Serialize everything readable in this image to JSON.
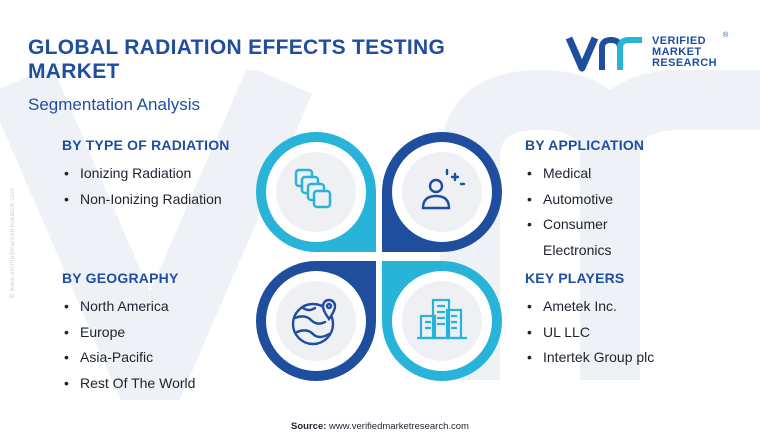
{
  "header": {
    "title": "GLOBAL RADIATION EFFECTS TESTING MARKET",
    "subtitle": "Segmentation Analysis"
  },
  "logo": {
    "line1": "VERIFIED",
    "line2": "MARKET",
    "line3": "RESEARCH",
    "registered": "®"
  },
  "side_url": "© www.verifiedmarketresearch.com",
  "segments": {
    "type_of_radiation": {
      "heading": "BY TYPE OF RADIATION",
      "items": [
        "Ionizing Radiation",
        "Non-Ionizing Radiation"
      ]
    },
    "application": {
      "heading": "BY APPLICATION",
      "items": [
        "Medical",
        "Automotive",
        "Consumer Electronics"
      ]
    },
    "geography": {
      "heading": "BY GEOGRAPHY",
      "items": [
        "North America",
        "Europe",
        "Asia-Pacific",
        "Rest Of The World"
      ]
    },
    "key_players": {
      "heading": "KEY PLAYERS",
      "items": [
        "Ametek Inc.",
        "UL LLC",
        "Intertek Group plc"
      ]
    }
  },
  "icons": {
    "top_left": "stacked-layers-icon",
    "top_right": "person-sparkle-icon",
    "bottom_left": "globe-location-icon",
    "bottom_right": "city-buildings-icon"
  },
  "colors": {
    "navy": "#1f4e9e",
    "cyan": "#27b4d8",
    "ring_gray": "#eef0f4"
  },
  "footer": {
    "source_label": "Source:",
    "source_url": "www.verifiedmarketresearch.com"
  }
}
